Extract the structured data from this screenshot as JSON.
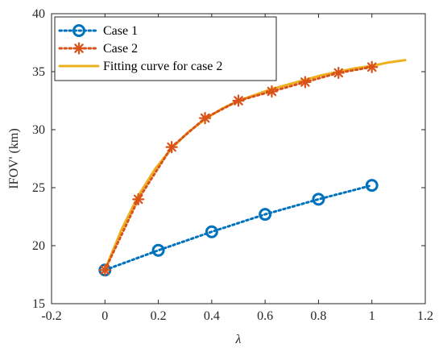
{
  "chart_data": {
    "type": "line",
    "title": "",
    "xlabel": "λ",
    "ylabel": "IFOV' (km)",
    "xlim": [
      -0.2,
      1.2
    ],
    "ylim": [
      15,
      40
    ],
    "xticks": [
      -0.2,
      0,
      0.2,
      0.4,
      0.6,
      0.8,
      1,
      1.2
    ],
    "yticks": [
      15,
      20,
      25,
      30,
      35,
      40
    ],
    "xtick_labels": [
      "-0.2",
      "0",
      "0.2",
      "0.4",
      "0.6",
      "0.8",
      "1",
      "1.2"
    ],
    "ytick_labels": [
      "15",
      "20",
      "25",
      "30",
      "35",
      "40"
    ],
    "grid": false,
    "legend_position": "top-left",
    "series": [
      {
        "name": "Case 1",
        "color": "#0072BD",
        "style": "dotted",
        "marker": "circle",
        "x": [
          0,
          0.2,
          0.4,
          0.6,
          0.8,
          1.0
        ],
        "y": [
          17.9,
          19.6,
          21.2,
          22.7,
          24.0,
          25.2
        ]
      },
      {
        "name": "Case 2",
        "color": "#D95319",
        "style": "dotted",
        "marker": "asterisk",
        "x": [
          0,
          0.125,
          0.25,
          0.375,
          0.5,
          0.625,
          0.75,
          0.875,
          1.0
        ],
        "y": [
          17.9,
          24.0,
          28.5,
          31.0,
          32.5,
          33.3,
          34.1,
          34.9,
          35.4
        ]
      },
      {
        "name": "Fitting curve for case 2",
        "color": "#EDB120",
        "style": "solid",
        "marker": "none",
        "x": [
          0,
          0.0625,
          0.125,
          0.1875,
          0.25,
          0.3125,
          0.375,
          0.4375,
          0.5,
          0.5625,
          0.625,
          0.6875,
          0.75,
          0.8125,
          0.875,
          0.9375,
          1.0,
          1.0625,
          1.125
        ],
        "y": [
          17.9,
          21.4,
          24.3,
          26.6,
          28.4,
          29.8,
          30.9,
          31.8,
          32.5,
          33.0,
          33.5,
          33.9,
          34.3,
          34.7,
          35.0,
          35.3,
          35.5,
          35.8,
          36.0
        ]
      }
    ]
  }
}
